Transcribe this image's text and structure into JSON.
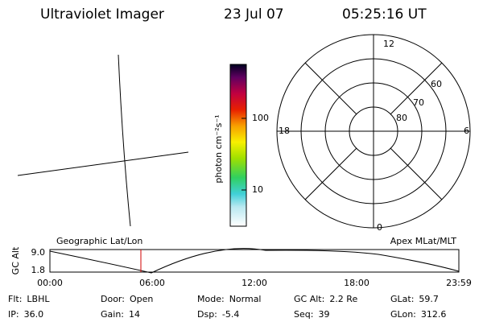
{
  "header": {
    "title": "Ultraviolet Imager",
    "date": "23 Jul 07",
    "time": "05:25:16 UT"
  },
  "colorbar": {
    "unit": "photon cm⁻²s⁻¹",
    "ticks": [
      "100",
      "10"
    ]
  },
  "polar": {
    "top": "12",
    "left": "18",
    "right": "6",
    "bottom": "0",
    "rings": [
      "80",
      "70",
      "60"
    ]
  },
  "timeline": {
    "ylabel": "GC Alt",
    "left_title": "Geographic Lat/Lon",
    "right_title": "Apex MLat/MLT",
    "yticks": [
      "9.0",
      "1.8"
    ],
    "xticks": [
      "00:00",
      "06:00",
      "12:00",
      "18:00",
      "23:59"
    ]
  },
  "info": [
    [
      {
        "label": "Flt:",
        "value": "LBHL"
      },
      {
        "label": "Door:",
        "value": "Open"
      },
      {
        "label": "Mode:",
        "value": "Normal"
      },
      {
        "label": "GC Alt:",
        "value": "2.2 Re"
      },
      {
        "label": "GLat:",
        "value": "59.7"
      }
    ],
    [
      {
        "label": "IP:",
        "value": "36.0"
      },
      {
        "label": "Gain:",
        "value": "14"
      },
      {
        "label": "Dsp:",
        "value": "-5.4"
      },
      {
        "label": "Seq:",
        "value": "39"
      },
      {
        "label": "GLon:",
        "value": "312.6"
      }
    ]
  ]
}
